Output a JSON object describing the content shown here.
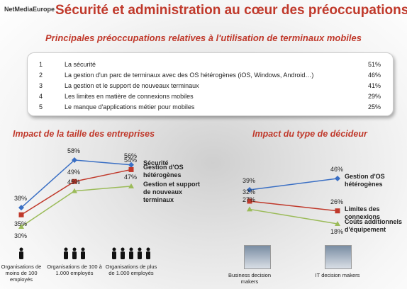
{
  "header": {
    "logo": "NetMediaEurope",
    "title": "Sécurité et administration au cœur des préoccupations",
    "subtitle": "Principales préoccupations relatives à l'utilisation de terminaux mobiles"
  },
  "table": {
    "rows": [
      [
        "1",
        "La sécurité",
        "51%"
      ],
      [
        "2",
        "La gestion d'un parc de terminaux avec des OS hétérogènes (iOS, Windows, Android…)",
        "46%"
      ],
      [
        "3",
        "La gestion et le support de nouveaux terminaux",
        "41%"
      ],
      [
        "4",
        "Les limites en matière de connexions mobiles",
        "29%"
      ],
      [
        "5",
        "Le manque d'applications métier pour mobiles",
        "25%"
      ]
    ]
  },
  "chart_data": [
    {
      "type": "line",
      "title": "Impact de la taille des entreprises",
      "categories": [
        "Organisations de moins de 100 employés",
        "Organisations de 100 à 1.000 employés",
        "Organisations de plus de 1.000 employés"
      ],
      "series": [
        {
          "name": "Sécurité",
          "color": "#3a6fc4",
          "values": [
            38,
            58,
            56
          ],
          "value_labels": [
            "38%",
            "58%",
            "56%"
          ]
        },
        {
          "name": "Gestion d'OS hétérogènes",
          "color": "#c0392b",
          "values": [
            35,
            49,
            54
          ],
          "value_labels": [
            "35%",
            "49%",
            "54%"
          ]
        },
        {
          "name": "Gestion et support de nouveaux terminaux",
          "color": "#9bbb59",
          "values": [
            30,
            45,
            47
          ],
          "value_labels": [
            "30%",
            "45%",
            "47%"
          ]
        }
      ]
    },
    {
      "type": "line",
      "title": "Impact du type de décideur",
      "categories": [
        "Business decision makers",
        "IT decision makers"
      ],
      "series": [
        {
          "name": "Gestion d'OS hétérogènes",
          "color": "#3a6fc4",
          "values": [
            39,
            46
          ],
          "value_labels": [
            "39%",
            "46%"
          ]
        },
        {
          "name": "Limites des connexions",
          "color": "#c0392b",
          "values": [
            32,
            26
          ],
          "value_labels": [
            "32%",
            "26%"
          ]
        },
        {
          "name": "Coûts additionnels d'équipement",
          "color": "#9bbb59",
          "values": [
            27,
            18
          ],
          "value_labels": [
            "27%",
            "18%"
          ]
        }
      ]
    }
  ]
}
